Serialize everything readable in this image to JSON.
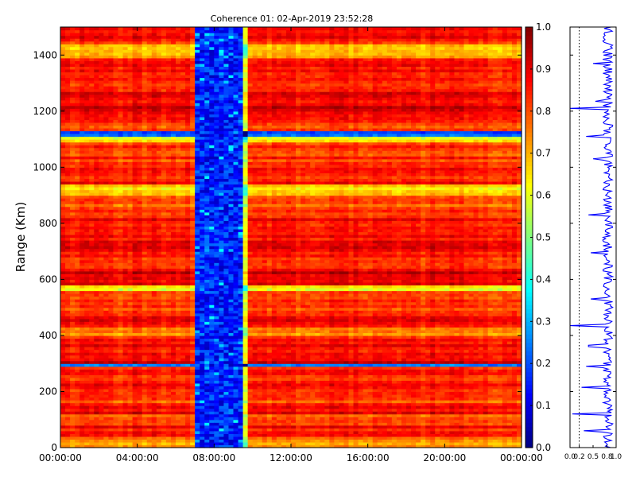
{
  "chart_data": [
    {
      "type": "heatmap",
      "title": "Coherence 01: 02-Apr-2019 23:52:28",
      "xlabel": "",
      "ylabel": "Range (Km)",
      "x_tick_labels": [
        "00:00:00",
        "04:00:00",
        "08:00:00",
        "12:00:00",
        "16:00:00",
        "20:00:00",
        "00:00:00"
      ],
      "x_range_hours": [
        0,
        24
      ],
      "y_ticks": [
        0,
        200,
        400,
        600,
        800,
        1000,
        1200,
        1400
      ],
      "y_range": [
        0,
        1500
      ],
      "colorbar": {
        "ticks": [
          "0.0",
          "0.1",
          "0.2",
          "0.3",
          "0.4",
          "0.5",
          "0.6",
          "0.7",
          "0.8",
          "0.9",
          "1.0"
        ],
        "range": [
          0,
          1
        ],
        "colormap": "jet"
      },
      "low_coherence_band_hours": [
        7.0,
        9.4
      ],
      "row_profile_range_km": [
        {
          "from": 0,
          "to": 40,
          "value": 0.72
        },
        {
          "from": 40,
          "to": 80,
          "value": 0.85
        },
        {
          "from": 80,
          "to": 120,
          "value": 0.78
        },
        {
          "from": 120,
          "to": 160,
          "value": 0.88
        },
        {
          "from": 160,
          "to": 200,
          "value": 0.8
        },
        {
          "from": 200,
          "to": 240,
          "value": 0.86
        },
        {
          "from": 240,
          "to": 290,
          "value": 0.83
        },
        {
          "from": 290,
          "to": 300,
          "value": 0.25
        },
        {
          "from": 300,
          "to": 340,
          "value": 0.9
        },
        {
          "from": 340,
          "to": 400,
          "value": 0.85
        },
        {
          "from": 400,
          "to": 430,
          "value": 0.72
        },
        {
          "from": 430,
          "to": 480,
          "value": 0.87
        },
        {
          "from": 480,
          "to": 560,
          "value": 0.82
        },
        {
          "from": 560,
          "to": 580,
          "value": 0.6
        },
        {
          "from": 580,
          "to": 640,
          "value": 0.92
        },
        {
          "from": 640,
          "to": 700,
          "value": 0.84
        },
        {
          "from": 700,
          "to": 760,
          "value": 0.88
        },
        {
          "from": 760,
          "to": 830,
          "value": 0.85
        },
        {
          "from": 830,
          "to": 900,
          "value": 0.8
        },
        {
          "from": 900,
          "to": 940,
          "value": 0.65
        },
        {
          "from": 940,
          "to": 1000,
          "value": 0.84
        },
        {
          "from": 1000,
          "to": 1090,
          "value": 0.82
        },
        {
          "from": 1090,
          "to": 1110,
          "value": 0.62
        },
        {
          "from": 1110,
          "to": 1130,
          "value": 0.2
        },
        {
          "from": 1130,
          "to": 1200,
          "value": 0.83
        },
        {
          "from": 1200,
          "to": 1270,
          "value": 0.9
        },
        {
          "from": 1270,
          "to": 1330,
          "value": 0.82
        },
        {
          "from": 1330,
          "to": 1390,
          "value": 0.87
        },
        {
          "from": 1390,
          "to": 1440,
          "value": 0.7
        },
        {
          "from": 1440,
          "to": 1500,
          "value": 0.85
        }
      ]
    },
    {
      "type": "line",
      "xlabel": "",
      "ylabel": "",
      "x_tick_labels": [
        "0.0",
        "0.2",
        "0.5",
        "0.8",
        "1.0"
      ],
      "x_range": [
        0,
        1
      ],
      "y_range": [
        0,
        1500
      ],
      "reference_line_x": 0.2,
      "series_color": "#0000ff",
      "low_value_spikes": [
        {
          "y": 60,
          "x": 0.3
        },
        {
          "y": 120,
          "x": 0.05
        },
        {
          "y": 215,
          "x": 0.25
        },
        {
          "y": 290,
          "x": 0.35
        },
        {
          "y": 362,
          "x": 0.4
        },
        {
          "y": 435,
          "x": 0.0
        },
        {
          "y": 530,
          "x": 0.45
        },
        {
          "y": 695,
          "x": 0.45
        },
        {
          "y": 830,
          "x": 0.4
        },
        {
          "y": 1030,
          "x": 0.5
        },
        {
          "y": 1110,
          "x": 0.35
        },
        {
          "y": 1210,
          "x": 0.0
        },
        {
          "y": 1235,
          "x": 0.55
        },
        {
          "y": 1370,
          "x": 0.5
        }
      ]
    }
  ]
}
